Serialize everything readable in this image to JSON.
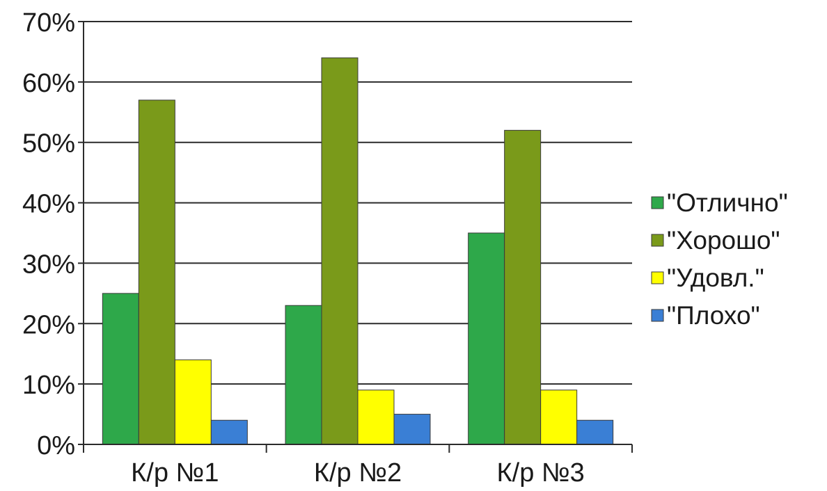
{
  "chart_data": {
    "type": "bar",
    "categories": [
      "К/р №1",
      "К/р №2",
      "К/р №3"
    ],
    "series": [
      {
        "name": "\"Отлично\"",
        "color": "#2ea84a",
        "values": [
          25,
          23,
          35
        ]
      },
      {
        "name": "\"Хорошо\"",
        "color": "#7a9a1a",
        "values": [
          57,
          64,
          52
        ]
      },
      {
        "name": "\"Удовл.\"",
        "color": "#ffff00",
        "values": [
          14,
          9,
          9
        ]
      },
      {
        "name": "\"Плохо\"",
        "color": "#3a7fd5",
        "values": [
          4,
          5,
          4
        ]
      }
    ],
    "y_ticks": [
      "0%",
      "10%",
      "20%",
      "30%",
      "40%",
      "50%",
      "60%",
      "70%"
    ],
    "ylim": [
      0,
      70
    ],
    "y_unit": "%",
    "grid": true,
    "legend_position": "right"
  }
}
